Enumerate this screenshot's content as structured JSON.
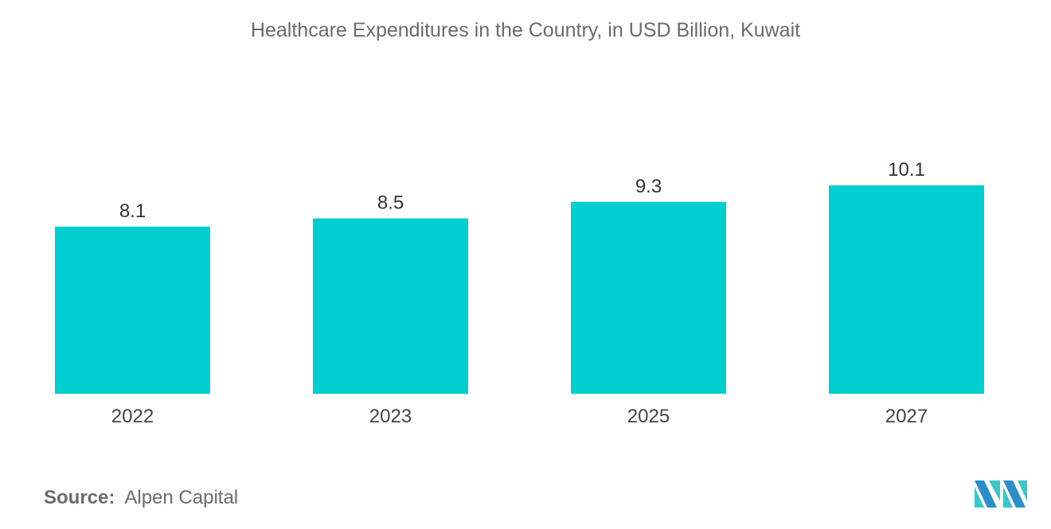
{
  "chart_data": {
    "type": "bar",
    "title": "Healthcare Expenditures in the Country, in USD Billion, Kuwait",
    "categories": [
      "2022",
      "2023",
      "2025",
      "2027"
    ],
    "values": [
      8.1,
      8.5,
      9.3,
      10.1
    ],
    "data_labels": [
      "8.1",
      "8.5",
      "9.3",
      "10.1"
    ],
    "xlabel": "",
    "ylabel": "",
    "ylim": [
      0,
      10.1
    ],
    "grid": false,
    "bar_color": "#00ced1"
  },
  "source": {
    "label": "Source:",
    "value": "Alpen Capital"
  },
  "logo": {
    "name": "mordor-intelligence-logo",
    "colors": [
      "#2a8fc9",
      "#3cc6c9"
    ]
  }
}
